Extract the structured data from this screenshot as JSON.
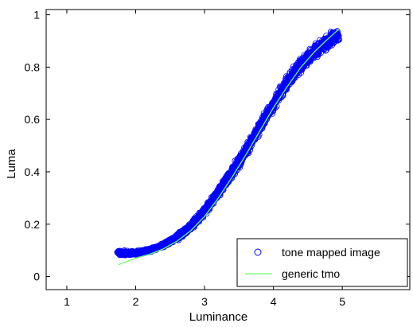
{
  "chart_data": {
    "type": "scatter",
    "xlabel": "Luminance",
    "ylabel": "Luma",
    "xlim": [
      0.7,
      5.98
    ],
    "ylim": [
      -0.05,
      1.02
    ],
    "xticks": [
      "1",
      "2",
      "3",
      "4",
      "5"
    ],
    "yticks": [
      "0",
      "0.2",
      "0.4",
      "0.6",
      "0.8",
      "1"
    ],
    "xtick_values": [
      1,
      2,
      3,
      4,
      5
    ],
    "ytick_values": [
      0,
      0.2,
      0.4,
      0.6,
      0.8,
      1
    ],
    "grid": false,
    "legend_position": "bottom-right",
    "series": [
      {
        "name": "tone mapped image",
        "kind": "scatter",
        "marker": "circle-open",
        "color": "#0000ff",
        "x_range": [
          1.75,
          4.95
        ],
        "points": [
          [
            1.8,
            0.09
          ],
          [
            2.0,
            0.09
          ],
          [
            2.2,
            0.1
          ],
          [
            2.4,
            0.12
          ],
          [
            2.6,
            0.15
          ],
          [
            2.8,
            0.19
          ],
          [
            3.0,
            0.25
          ],
          [
            3.2,
            0.32
          ],
          [
            3.4,
            0.4
          ],
          [
            3.6,
            0.48
          ],
          [
            3.8,
            0.57
          ],
          [
            4.0,
            0.66
          ],
          [
            4.2,
            0.74
          ],
          [
            4.4,
            0.81
          ],
          [
            4.6,
            0.86
          ],
          [
            4.8,
            0.9
          ],
          [
            4.9,
            0.92
          ]
        ]
      },
      {
        "name": "generic tmo",
        "kind": "line",
        "color": "#66ff66",
        "x": [
          1.75,
          2.0,
          2.2,
          2.4,
          2.6,
          2.8,
          3.0,
          3.2,
          3.4,
          3.6,
          3.8,
          4.0,
          4.2,
          4.4,
          4.6,
          4.8,
          4.95
        ],
        "y": [
          0.045,
          0.07,
          0.085,
          0.105,
          0.135,
          0.175,
          0.23,
          0.3,
          0.38,
          0.465,
          0.555,
          0.645,
          0.725,
          0.8,
          0.86,
          0.91,
          0.945
        ]
      }
    ]
  }
}
